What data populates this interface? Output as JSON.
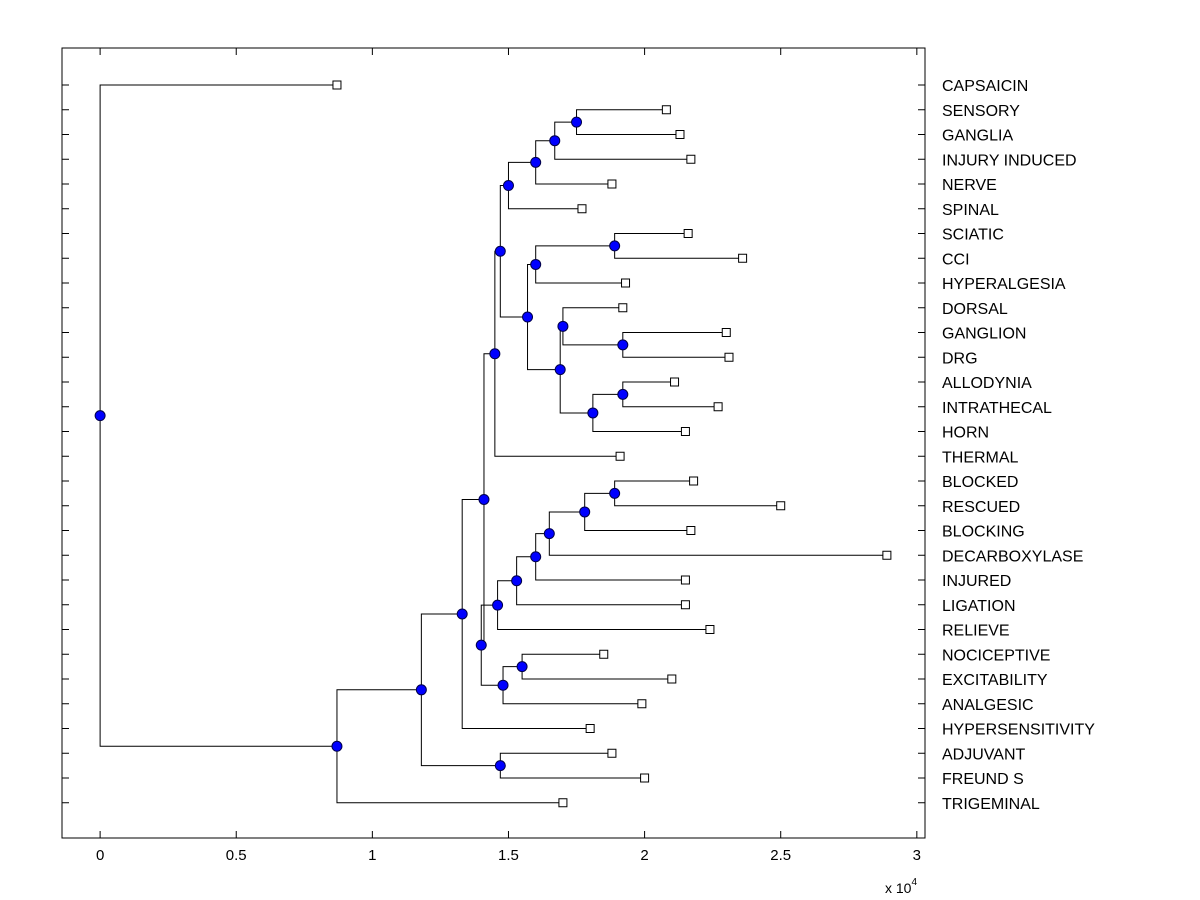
{
  "chart_data": {
    "type": "dendrogram",
    "title": "",
    "xlabel": "",
    "ylabel": "",
    "x_multiplier": {
      "base": "x 10",
      "exponent": "4"
    },
    "xlim": [
      -0.14,
      3.03
    ],
    "xticks": [
      0,
      0.5,
      1,
      1.5,
      2,
      2.5,
      3
    ],
    "xtick_labels": [
      "0",
      "0.5",
      "1",
      "1.5",
      "2",
      "2.5",
      "3"
    ],
    "grid": false,
    "leaves": [
      {
        "label": "CAPSAICIN",
        "x": 0.87
      },
      {
        "label": "SENSORY",
        "x": 2.08
      },
      {
        "label": "GANGLIA",
        "x": 2.13
      },
      {
        "label": "INJURY INDUCED",
        "x": 2.17
      },
      {
        "label": "NERVE",
        "x": 1.88
      },
      {
        "label": "SPINAL",
        "x": 1.77
      },
      {
        "label": "SCIATIC",
        "x": 2.16
      },
      {
        "label": "CCI",
        "x": 2.36
      },
      {
        "label": "HYPERALGESIA",
        "x": 1.93
      },
      {
        "label": "DORSAL",
        "x": 1.92
      },
      {
        "label": "GANGLION",
        "x": 2.3
      },
      {
        "label": "DRG",
        "x": 2.31
      },
      {
        "label": "ALLODYNIA",
        "x": 2.11
      },
      {
        "label": "INTRATHECAL",
        "x": 2.27
      },
      {
        "label": "HORN",
        "x": 2.15
      },
      {
        "label": "THERMAL",
        "x": 1.91
      },
      {
        "label": "BLOCKED",
        "x": 2.18
      },
      {
        "label": "RESCUED",
        "x": 2.5
      },
      {
        "label": "BLOCKING",
        "x": 2.17
      },
      {
        "label": "DECARBOXYLASE",
        "x": 2.89
      },
      {
        "label": "INJURED",
        "x": 2.15
      },
      {
        "label": "LIGATION",
        "x": 2.15
      },
      {
        "label": "RELIEVE",
        "x": 2.24
      },
      {
        "label": "NOCICEPTIVE",
        "x": 1.85
      },
      {
        "label": "EXCITABILITY",
        "x": 2.1
      },
      {
        "label": "ANALGESIC",
        "x": 1.99
      },
      {
        "label": "HYPERSENSITIVITY",
        "x": 1.8
      },
      {
        "label": "ADJUVANT",
        "x": 1.88
      },
      {
        "label": "FREUND S",
        "x": 2.0
      },
      {
        "label": "TRIGEMINAL",
        "x": 1.7
      }
    ],
    "merges": [
      {
        "id": "m1",
        "x": 1.75,
        "children": [
          "L1",
          "L2"
        ]
      },
      {
        "id": "m2",
        "x": 1.67,
        "children": [
          "m1",
          "L3"
        ]
      },
      {
        "id": "m3",
        "x": 1.6,
        "children": [
          "m2",
          "L4"
        ]
      },
      {
        "id": "m4",
        "x": 1.5,
        "children": [
          "m3",
          "L5"
        ]
      },
      {
        "id": "m5",
        "x": 1.89,
        "children": [
          "L6",
          "L7"
        ]
      },
      {
        "id": "m6",
        "x": 1.6,
        "children": [
          "m5",
          "L8"
        ]
      },
      {
        "id": "m7",
        "x": 1.92,
        "children": [
          "L10",
          "L11"
        ]
      },
      {
        "id": "m8",
        "x": 1.7,
        "children": [
          "L9",
          "m7"
        ]
      },
      {
        "id": "m9",
        "x": 1.92,
        "children": [
          "L12",
          "L13"
        ]
      },
      {
        "id": "m10",
        "x": 1.81,
        "children": [
          "m9",
          "L14"
        ]
      },
      {
        "id": "m11",
        "x": 1.69,
        "children": [
          "m8",
          "m10"
        ]
      },
      {
        "id": "m12",
        "x": 1.57,
        "children": [
          "m6",
          "m11"
        ]
      },
      {
        "id": "m13",
        "x": 1.47,
        "children": [
          "m4",
          "m12"
        ]
      },
      {
        "id": "m14",
        "x": 1.45,
        "children": [
          "m13",
          "L15"
        ]
      },
      {
        "id": "m15",
        "x": 1.89,
        "children": [
          "L16",
          "L17"
        ]
      },
      {
        "id": "m16",
        "x": 1.78,
        "children": [
          "m15",
          "L18"
        ]
      },
      {
        "id": "m17",
        "x": 1.65,
        "children": [
          "m16",
          "L19"
        ]
      },
      {
        "id": "m18",
        "x": 1.6,
        "children": [
          "m17",
          "L20"
        ]
      },
      {
        "id": "m19",
        "x": 1.53,
        "children": [
          "m18",
          "L21"
        ]
      },
      {
        "id": "m20",
        "x": 1.46,
        "children": [
          "m19",
          "L22"
        ]
      },
      {
        "id": "m21",
        "x": 1.55,
        "children": [
          "L23",
          "L24"
        ]
      },
      {
        "id": "m22",
        "x": 1.48,
        "children": [
          "m21",
          "L25"
        ]
      },
      {
        "id": "m23",
        "x": 1.4,
        "children": [
          "m20",
          "m22"
        ]
      },
      {
        "id": "m24",
        "x": 1.41,
        "children": [
          "m14",
          "m23"
        ]
      },
      {
        "id": "m25",
        "x": 1.33,
        "children": [
          "m24",
          "L26"
        ]
      },
      {
        "id": "m26",
        "x": 1.47,
        "children": [
          "L27",
          "L28"
        ]
      },
      {
        "id": "m27",
        "x": 1.18,
        "children": [
          "m25",
          "m26"
        ]
      },
      {
        "id": "m28",
        "x": 0.87,
        "children": [
          "m27",
          "L29"
        ]
      },
      {
        "id": "m29",
        "x": 0.0,
        "children": [
          "L0",
          "m28"
        ]
      }
    ],
    "colors": {
      "axes": "#000000",
      "links": "#000000",
      "node_fill": "#0000ff",
      "node_stroke": "#00004a",
      "leaf_marker_fill": "#ffffff",
      "leaf_marker_stroke": "#000000",
      "background": "#ffffff"
    }
  }
}
